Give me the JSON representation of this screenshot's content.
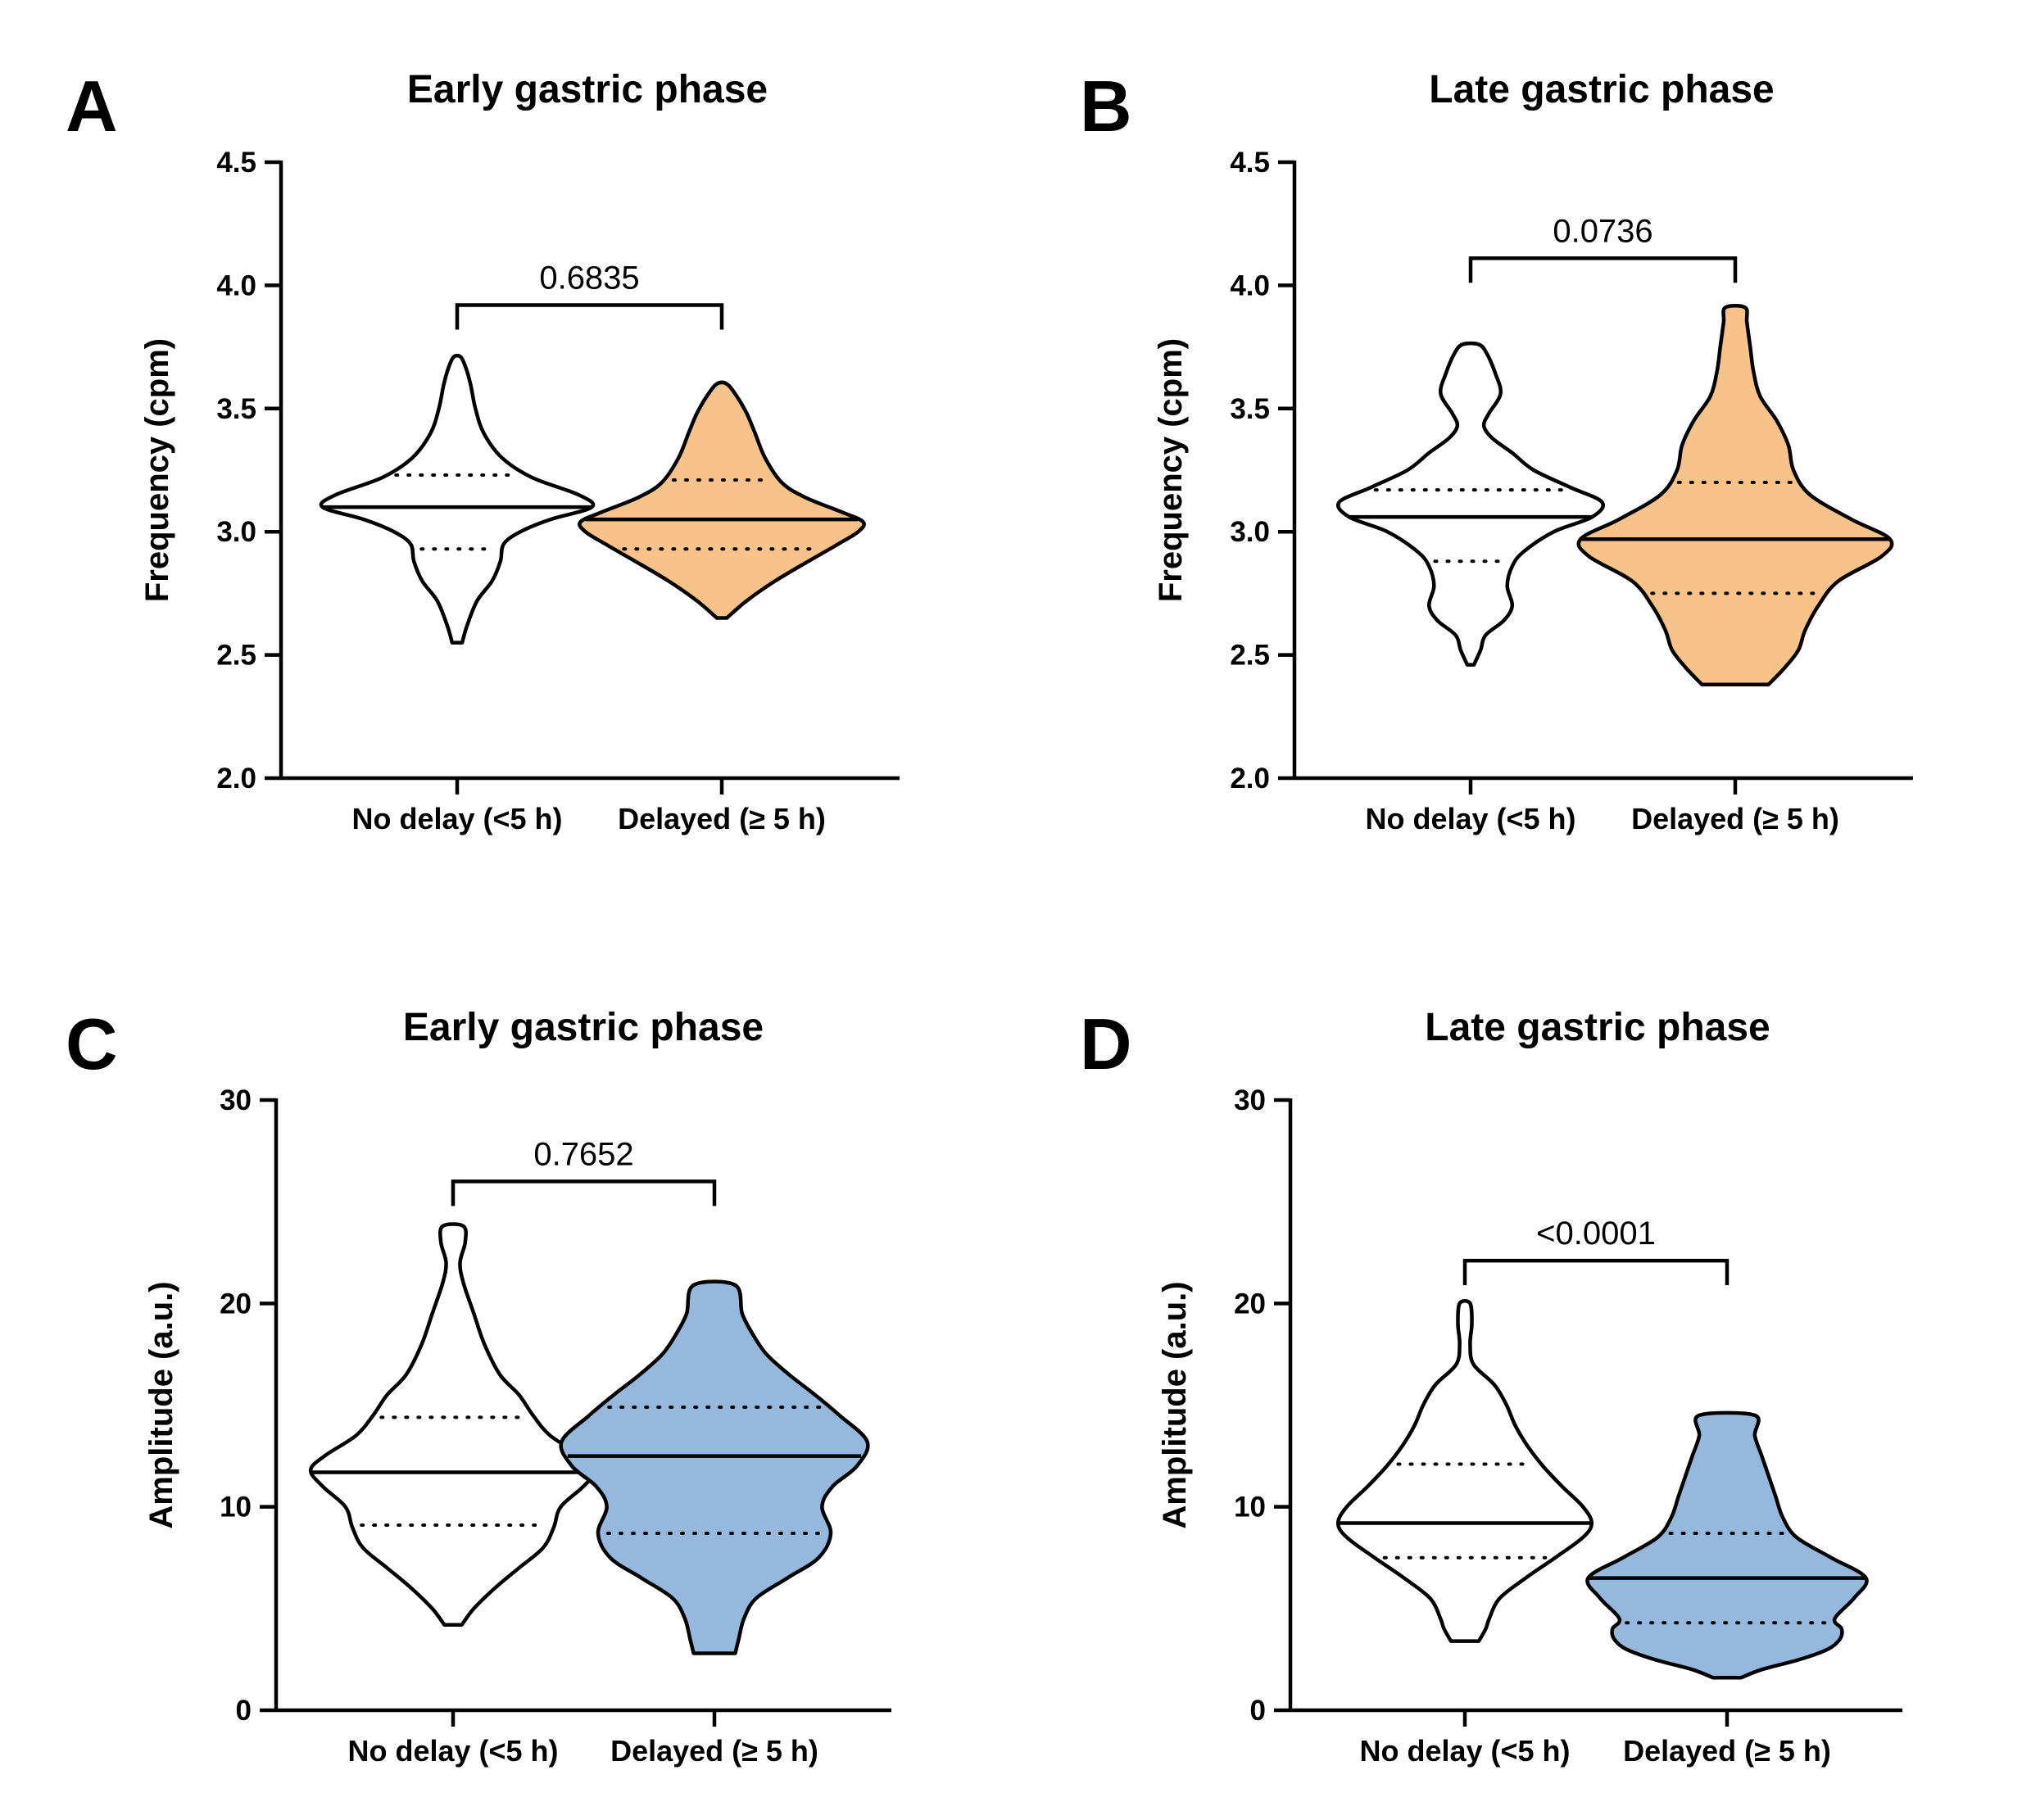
{
  "colors": {
    "no_delay_fill": "#ffffff",
    "orange_fill": "#f7c38b",
    "blue_fill": "#97b8dd",
    "stroke": "#000000"
  },
  "chart_data": [
    {
      "panel": "A",
      "type": "violin",
      "title": "Early gastric phase",
      "ylabel": "Frequency (cpm)",
      "ylim": [
        2.0,
        4.5
      ],
      "yticks": [
        "2.0",
        "2.5",
        "3.0",
        "3.5",
        "4.0",
        "4.5"
      ],
      "categories": [
        "No delay (<5 h)",
        "Delayed (≥ 5 h)"
      ],
      "series": [
        {
          "category": "No delay (<5 h)",
          "color": "#ffffff",
          "min": 2.55,
          "max": 3.71,
          "q1": 2.93,
          "median": 3.1,
          "q3": 3.23,
          "profile": [
            [
              2.55,
              0.03
            ],
            [
              2.62,
              0.06
            ],
            [
              2.72,
              0.12
            ],
            [
              2.8,
              0.21
            ],
            [
              2.88,
              0.26
            ],
            [
              2.95,
              0.28
            ],
            [
              3.0,
              0.38
            ],
            [
              3.05,
              0.56
            ],
            [
              3.1,
              0.81
            ],
            [
              3.15,
              0.73
            ],
            [
              3.22,
              0.45
            ],
            [
              3.3,
              0.27
            ],
            [
              3.4,
              0.16
            ],
            [
              3.5,
              0.11
            ],
            [
              3.6,
              0.08
            ],
            [
              3.67,
              0.05
            ],
            [
              3.71,
              0.02
            ]
          ]
        },
        {
          "category": "Delayed (≥ 5 h)",
          "color": "#f7c38b",
          "min": 2.65,
          "max": 3.6,
          "q1": 2.93,
          "median": 3.05,
          "q3": 3.21,
          "profile": [
            [
              2.65,
              0.03
            ],
            [
              2.72,
              0.15
            ],
            [
              2.8,
              0.32
            ],
            [
              2.88,
              0.52
            ],
            [
              2.95,
              0.7
            ],
            [
              3.0,
              0.82
            ],
            [
              3.04,
              0.85
            ],
            [
              3.08,
              0.72
            ],
            [
              3.14,
              0.5
            ],
            [
              3.2,
              0.36
            ],
            [
              3.3,
              0.26
            ],
            [
              3.4,
              0.2
            ],
            [
              3.48,
              0.15
            ],
            [
              3.55,
              0.09
            ],
            [
              3.6,
              0.03
            ]
          ]
        }
      ],
      "comparison": {
        "p_value": "0.6835",
        "y": 3.92
      }
    },
    {
      "panel": "B",
      "type": "violin",
      "title": "Late gastric phase",
      "ylabel": "Frequency (cpm)",
      "ylim": [
        2.0,
        4.5
      ],
      "yticks": [
        "2.0",
        "2.5",
        "3.0",
        "3.5",
        "4.0",
        "4.5"
      ],
      "categories": [
        "No delay (<5 h)",
        "Delayed (≥ 5 h)"
      ],
      "series": [
        {
          "category": "No delay (<5 h)",
          "color": "#ffffff",
          "min": 2.46,
          "max": 3.76,
          "q1": 2.88,
          "median": 3.06,
          "q3": 3.17,
          "profile": [
            [
              2.46,
              0.02
            ],
            [
              2.52,
              0.06
            ],
            [
              2.58,
              0.09
            ],
            [
              2.64,
              0.2
            ],
            [
              2.7,
              0.25
            ],
            [
              2.78,
              0.22
            ],
            [
              2.86,
              0.25
            ],
            [
              2.92,
              0.32
            ],
            [
              3.0,
              0.5
            ],
            [
              3.06,
              0.73
            ],
            [
              3.12,
              0.79
            ],
            [
              3.18,
              0.6
            ],
            [
              3.25,
              0.38
            ],
            [
              3.32,
              0.25
            ],
            [
              3.38,
              0.13
            ],
            [
              3.43,
              0.08
            ],
            [
              3.48,
              0.11
            ],
            [
              3.56,
              0.18
            ],
            [
              3.64,
              0.15
            ],
            [
              3.72,
              0.1
            ],
            [
              3.76,
              0.05
            ]
          ]
        },
        {
          "category": "Delayed (≥ 5 h)",
          "color": "#f7c38b",
          "min": 2.38,
          "max": 3.91,
          "q1": 2.75,
          "median": 2.97,
          "q3": 3.2,
          "profile": [
            [
              2.38,
              0.2
            ],
            [
              2.45,
              0.3
            ],
            [
              2.52,
              0.38
            ],
            [
              2.6,
              0.42
            ],
            [
              2.7,
              0.5
            ],
            [
              2.8,
              0.62
            ],
            [
              2.9,
              0.88
            ],
            [
              2.97,
              0.93
            ],
            [
              3.05,
              0.7
            ],
            [
              3.15,
              0.45
            ],
            [
              3.25,
              0.35
            ],
            [
              3.35,
              0.32
            ],
            [
              3.45,
              0.25
            ],
            [
              3.55,
              0.15
            ],
            [
              3.65,
              0.11
            ],
            [
              3.75,
              0.09
            ],
            [
              3.85,
              0.07
            ],
            [
              3.91,
              0.06
            ]
          ]
        }
      ],
      "comparison": {
        "p_value": "0.0736",
        "y": 4.11
      }
    },
    {
      "panel": "C",
      "type": "violin",
      "title": "Early gastric phase",
      "ylabel": "Amplitude (a.u.)",
      "ylim": [
        0,
        30
      ],
      "yticks": [
        "0",
        "10",
        "20",
        "30"
      ],
      "categories": [
        "No delay (<5 h)",
        "Delayed (≥ 5 h)"
      ],
      "series": [
        {
          "category": "No delay (<5 h)",
          "color": "#ffffff",
          "min": 4.2,
          "max": 23.8,
          "q1": 9.1,
          "median": 11.7,
          "q3": 14.4,
          "profile": [
            [
              4.2,
              0.05
            ],
            [
              5.0,
              0.12
            ],
            [
              6.0,
              0.24
            ],
            [
              7.0,
              0.38
            ],
            [
              8.0,
              0.52
            ],
            [
              9.0,
              0.58
            ],
            [
              10.0,
              0.62
            ],
            [
              11.0,
              0.75
            ],
            [
              11.8,
              0.82
            ],
            [
              12.5,
              0.74
            ],
            [
              13.5,
              0.56
            ],
            [
              14.5,
              0.46
            ],
            [
              15.5,
              0.38
            ],
            [
              16.5,
              0.27
            ],
            [
              18.0,
              0.18
            ],
            [
              19.5,
              0.12
            ],
            [
              21.0,
              0.06
            ],
            [
              22.0,
              0.04
            ],
            [
              23.0,
              0.07
            ],
            [
              23.8,
              0.06
            ]
          ]
        },
        {
          "category": "Delayed (≥ 5 h)",
          "color": "#97b8dd",
          "min": 2.8,
          "max": 20.9,
          "q1": 8.7,
          "median": 12.5,
          "q3": 14.9,
          "profile": [
            [
              2.8,
              0.12
            ],
            [
              3.5,
              0.14
            ],
            [
              4.5,
              0.17
            ],
            [
              5.5,
              0.24
            ],
            [
              6.5,
              0.42
            ],
            [
              7.5,
              0.6
            ],
            [
              8.7,
              0.67
            ],
            [
              10.0,
              0.62
            ],
            [
              11.0,
              0.68
            ],
            [
              12.0,
              0.82
            ],
            [
              13.2,
              0.88
            ],
            [
              14.5,
              0.72
            ],
            [
              15.5,
              0.58
            ],
            [
              16.5,
              0.43
            ],
            [
              17.5,
              0.3
            ],
            [
              18.5,
              0.22
            ],
            [
              19.5,
              0.16
            ],
            [
              20.9,
              0.12
            ]
          ]
        }
      ],
      "comparison": {
        "p_value": "0.7652",
        "y": 26.0
      }
    },
    {
      "panel": "D",
      "type": "violin",
      "title": "Late gastric phase",
      "ylabel": "Amplitude (a.u.)",
      "ylim": [
        0,
        30
      ],
      "yticks": [
        "0",
        "10",
        "20",
        "30"
      ],
      "categories": [
        "No delay (<5 h)",
        "Delayed (≥ 5 h)"
      ],
      "series": [
        {
          "category": "No delay (<5 h)",
          "color": "#ffffff",
          "min": 3.4,
          "max": 20.0,
          "q1": 7.5,
          "median": 9.2,
          "q3": 12.1,
          "profile": [
            [
              3.4,
              0.08
            ],
            [
              4.0,
              0.12
            ],
            [
              4.5,
              0.14
            ],
            [
              5.5,
              0.2
            ],
            [
              6.5,
              0.35
            ],
            [
              7.5,
              0.52
            ],
            [
              8.5,
              0.68
            ],
            [
              9.2,
              0.73
            ],
            [
              10.0,
              0.68
            ],
            [
              11.0,
              0.56
            ],
            [
              12.0,
              0.45
            ],
            [
              13.0,
              0.36
            ],
            [
              14.0,
              0.29
            ],
            [
              15.0,
              0.24
            ],
            [
              16.0,
              0.17
            ],
            [
              17.0,
              0.05
            ],
            [
              18.0,
              0.03
            ],
            [
              19.0,
              0.04
            ],
            [
              20.0,
              0.03
            ]
          ]
        },
        {
          "category": "Delayed (≥ 5 h)",
          "color": "#97b8dd",
          "min": 1.6,
          "max": 14.5,
          "q1": 4.3,
          "median": 6.5,
          "q3": 8.7,
          "profile": [
            [
              1.6,
              0.08
            ],
            [
              2.0,
              0.2
            ],
            [
              2.5,
              0.42
            ],
            [
              3.0,
              0.58
            ],
            [
              3.5,
              0.65
            ],
            [
              4.0,
              0.66
            ],
            [
              4.5,
              0.62
            ],
            [
              5.5,
              0.73
            ],
            [
              6.5,
              0.8
            ],
            [
              7.5,
              0.6
            ],
            [
              8.5,
              0.4
            ],
            [
              9.5,
              0.32
            ],
            [
              10.5,
              0.28
            ],
            [
              11.5,
              0.24
            ],
            [
              12.5,
              0.2
            ],
            [
              13.5,
              0.16
            ],
            [
              14.5,
              0.16
            ]
          ]
        }
      ],
      "comparison": {
        "p_value": "<0.0001",
        "y": 22.1
      }
    }
  ]
}
